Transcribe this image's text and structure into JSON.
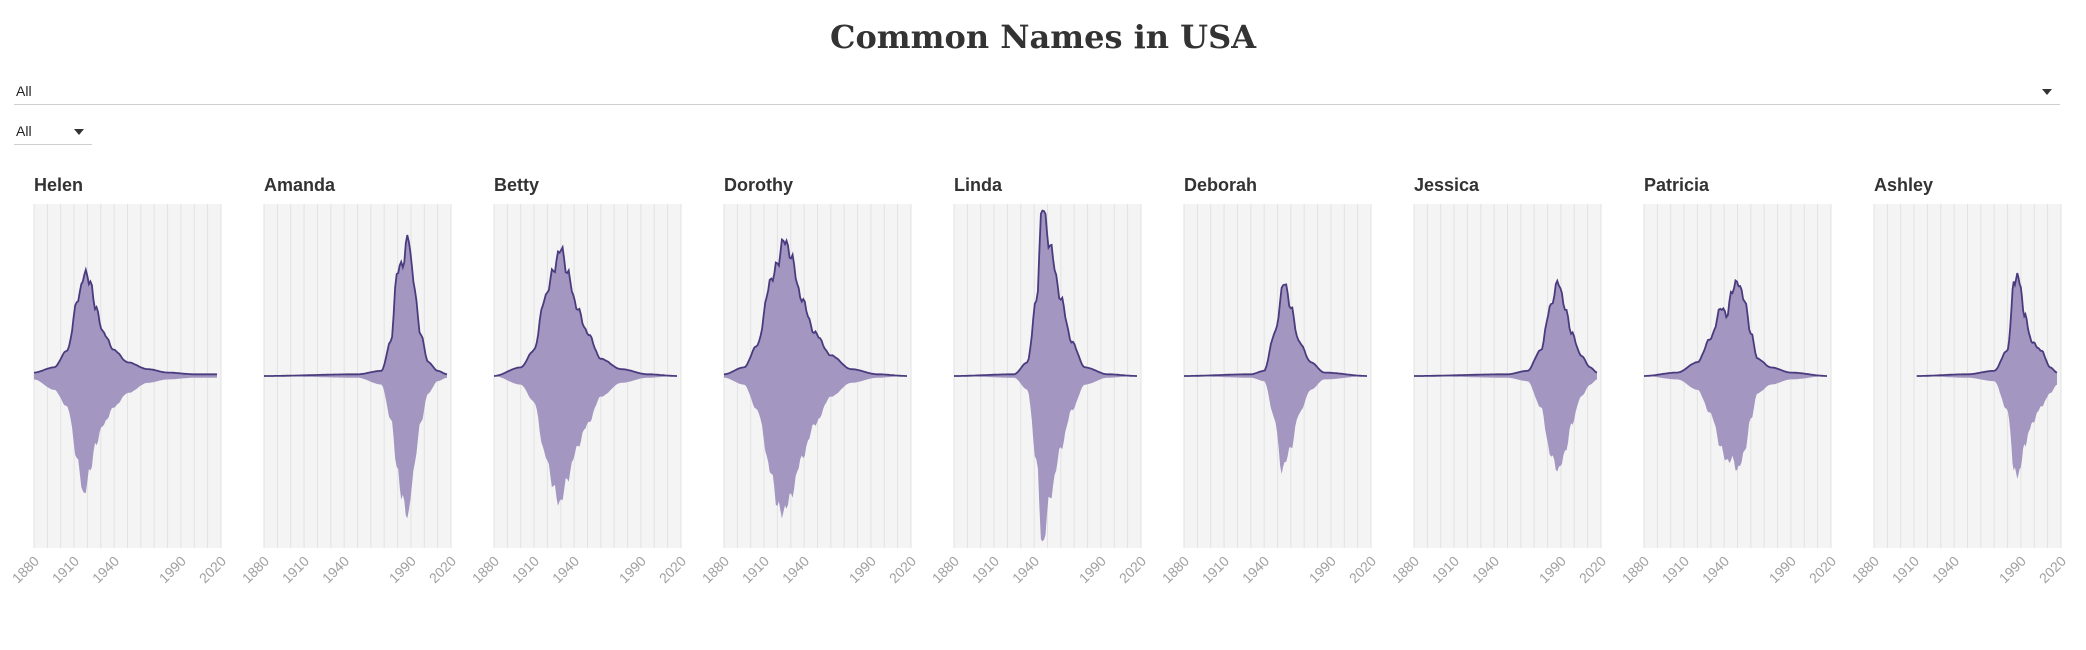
{
  "title": "Common Names in USA",
  "filters": {
    "wide_select_value": "All",
    "small_select_value": "All"
  },
  "colors": {
    "area_fill": "#a396c1",
    "line": "#4a3b7e",
    "panel_bg": "#f4f4f4",
    "grid": "#e2e2e2",
    "tick_text": "#a0a0a0"
  },
  "chart_data": {
    "type": "area",
    "description_of_axes": "x = year, mirrored area above and below a baseline",
    "x_ticks": [
      1880,
      1910,
      1940,
      1990,
      2020
    ],
    "xlim": [
      1880,
      2020
    ],
    "series": [
      {
        "name": "Helen",
        "upper": [
          [
            1880,
            0.02
          ],
          [
            1895,
            0.05
          ],
          [
            1905,
            0.15
          ],
          [
            1913,
            0.45
          ],
          [
            1918,
            0.6
          ],
          [
            1922,
            0.55
          ],
          [
            1926,
            0.4
          ],
          [
            1932,
            0.25
          ],
          [
            1940,
            0.15
          ],
          [
            1950,
            0.08
          ],
          [
            1965,
            0.04
          ],
          [
            1980,
            0.02
          ],
          [
            2000,
            0.01
          ],
          [
            2017,
            0.01
          ]
        ],
        "lower": [
          [
            1880,
            0.02
          ],
          [
            1895,
            0.08
          ],
          [
            1905,
            0.18
          ],
          [
            1913,
            0.5
          ],
          [
            1917,
            0.7
          ],
          [
            1922,
            0.55
          ],
          [
            1926,
            0.4
          ],
          [
            1932,
            0.28
          ],
          [
            1940,
            0.18
          ],
          [
            1950,
            0.1
          ],
          [
            1965,
            0.04
          ],
          [
            1980,
            0.02
          ],
          [
            2000,
            0.01
          ],
          [
            2017,
            0.01
          ]
        ]
      },
      {
        "name": "Amanda",
        "upper": [
          [
            1880,
            0.0
          ],
          [
            1950,
            0.01
          ],
          [
            1968,
            0.03
          ],
          [
            1975,
            0.2
          ],
          [
            1980,
            0.62
          ],
          [
            1984,
            0.65
          ],
          [
            1988,
            0.82
          ],
          [
            1992,
            0.55
          ],
          [
            1997,
            0.25
          ],
          [
            2003,
            0.08
          ],
          [
            2010,
            0.03
          ],
          [
            2017,
            0.01
          ]
        ],
        "lower": [
          [
            1880,
            0.0
          ],
          [
            1950,
            0.01
          ],
          [
            1968,
            0.05
          ],
          [
            1975,
            0.25
          ],
          [
            1980,
            0.55
          ],
          [
            1983,
            0.7
          ],
          [
            1988,
            0.82
          ],
          [
            1992,
            0.55
          ],
          [
            1997,
            0.28
          ],
          [
            2003,
            0.1
          ],
          [
            2010,
            0.03
          ],
          [
            2017,
            0.01
          ]
        ]
      },
      {
        "name": "Betty",
        "upper": [
          [
            1880,
            0.0
          ],
          [
            1900,
            0.05
          ],
          [
            1910,
            0.15
          ],
          [
            1918,
            0.45
          ],
          [
            1925,
            0.62
          ],
          [
            1930,
            0.75
          ],
          [
            1935,
            0.6
          ],
          [
            1942,
            0.4
          ],
          [
            1950,
            0.25
          ],
          [
            1960,
            0.1
          ],
          [
            1975,
            0.04
          ],
          [
            1995,
            0.01
          ],
          [
            2017,
            0.0
          ]
        ],
        "lower": [
          [
            1880,
            0.0
          ],
          [
            1900,
            0.05
          ],
          [
            1910,
            0.15
          ],
          [
            1918,
            0.45
          ],
          [
            1925,
            0.65
          ],
          [
            1929,
            0.75
          ],
          [
            1935,
            0.6
          ],
          [
            1942,
            0.42
          ],
          [
            1950,
            0.28
          ],
          [
            1960,
            0.12
          ],
          [
            1975,
            0.04
          ],
          [
            1995,
            0.01
          ],
          [
            2017,
            0.0
          ]
        ]
      },
      {
        "name": "Dorothy",
        "upper": [
          [
            1880,
            0.01
          ],
          [
            1895,
            0.05
          ],
          [
            1905,
            0.18
          ],
          [
            1915,
            0.55
          ],
          [
            1920,
            0.65
          ],
          [
            1925,
            0.8
          ],
          [
            1930,
            0.7
          ],
          [
            1938,
            0.45
          ],
          [
            1948,
            0.25
          ],
          [
            1960,
            0.12
          ],
          [
            1975,
            0.04
          ],
          [
            1995,
            0.01
          ],
          [
            2017,
            0.0
          ]
        ],
        "lower": [
          [
            1880,
            0.01
          ],
          [
            1895,
            0.05
          ],
          [
            1905,
            0.2
          ],
          [
            1915,
            0.55
          ],
          [
            1920,
            0.75
          ],
          [
            1924,
            0.8
          ],
          [
            1930,
            0.7
          ],
          [
            1938,
            0.48
          ],
          [
            1948,
            0.28
          ],
          [
            1960,
            0.12
          ],
          [
            1975,
            0.04
          ],
          [
            1995,
            0.01
          ],
          [
            2017,
            0.0
          ]
        ]
      },
      {
        "name": "Linda",
        "upper": [
          [
            1880,
            0.0
          ],
          [
            1925,
            0.01
          ],
          [
            1935,
            0.08
          ],
          [
            1942,
            0.45
          ],
          [
            1946,
            1.0
          ],
          [
            1952,
            0.75
          ],
          [
            1960,
            0.45
          ],
          [
            1968,
            0.2
          ],
          [
            1978,
            0.05
          ],
          [
            1995,
            0.01
          ],
          [
            2017,
            0.0
          ]
        ],
        "lower": [
          [
            1880,
            0.0
          ],
          [
            1925,
            0.01
          ],
          [
            1935,
            0.08
          ],
          [
            1942,
            0.5
          ],
          [
            1946,
            1.0
          ],
          [
            1952,
            0.7
          ],
          [
            1960,
            0.42
          ],
          [
            1968,
            0.2
          ],
          [
            1978,
            0.05
          ],
          [
            1995,
            0.01
          ],
          [
            2017,
            0.0
          ]
        ]
      },
      {
        "name": "Deborah",
        "upper": [
          [
            1880,
            0.0
          ],
          [
            1930,
            0.01
          ],
          [
            1940,
            0.03
          ],
          [
            1948,
            0.25
          ],
          [
            1955,
            0.55
          ],
          [
            1960,
            0.4
          ],
          [
            1966,
            0.2
          ],
          [
            1975,
            0.08
          ],
          [
            1985,
            0.02
          ],
          [
            2017,
            0.0
          ]
        ],
        "lower": [
          [
            1880,
            0.0
          ],
          [
            1930,
            0.01
          ],
          [
            1940,
            0.03
          ],
          [
            1948,
            0.25
          ],
          [
            1953,
            0.55
          ],
          [
            1960,
            0.42
          ],
          [
            1966,
            0.22
          ],
          [
            1975,
            0.08
          ],
          [
            1985,
            0.02
          ],
          [
            2017,
            0.0
          ]
        ]
      },
      {
        "name": "Jessica",
        "upper": [
          [
            1880,
            0.0
          ],
          [
            1950,
            0.01
          ],
          [
            1965,
            0.03
          ],
          [
            1975,
            0.15
          ],
          [
            1982,
            0.4
          ],
          [
            1988,
            0.55
          ],
          [
            1993,
            0.4
          ],
          [
            1998,
            0.25
          ],
          [
            2005,
            0.12
          ],
          [
            2012,
            0.05
          ],
          [
            2017,
            0.02
          ]
        ],
        "lower": [
          [
            1880,
            0.0
          ],
          [
            1950,
            0.01
          ],
          [
            1965,
            0.03
          ],
          [
            1975,
            0.18
          ],
          [
            1982,
            0.45
          ],
          [
            1988,
            0.55
          ],
          [
            1993,
            0.45
          ],
          [
            1998,
            0.28
          ],
          [
            2005,
            0.12
          ],
          [
            2012,
            0.05
          ],
          [
            2017,
            0.02
          ]
        ]
      },
      {
        "name": "Patricia",
        "upper": [
          [
            1880,
            0.0
          ],
          [
            1905,
            0.02
          ],
          [
            1920,
            0.08
          ],
          [
            1930,
            0.22
          ],
          [
            1938,
            0.4
          ],
          [
            1942,
            0.35
          ],
          [
            1946,
            0.5
          ],
          [
            1950,
            0.55
          ],
          [
            1955,
            0.45
          ],
          [
            1960,
            0.25
          ],
          [
            1965,
            0.1
          ],
          [
            1975,
            0.05
          ],
          [
            1990,
            0.02
          ],
          [
            2017,
            0.0
          ]
        ],
        "lower": [
          [
            1880,
            0.0
          ],
          [
            1905,
            0.02
          ],
          [
            1920,
            0.08
          ],
          [
            1930,
            0.22
          ],
          [
            1938,
            0.42
          ],
          [
            1942,
            0.5
          ],
          [
            1946,
            0.48
          ],
          [
            1950,
            0.55
          ],
          [
            1955,
            0.45
          ],
          [
            1960,
            0.25
          ],
          [
            1965,
            0.1
          ],
          [
            1975,
            0.05
          ],
          [
            1990,
            0.02
          ],
          [
            2017,
            0.0
          ]
        ]
      },
      {
        "name": "Ashley",
        "upper": [
          [
            1912,
            0.0
          ],
          [
            1950,
            0.01
          ],
          [
            1970,
            0.03
          ],
          [
            1980,
            0.15
          ],
          [
            1985,
            0.55
          ],
          [
            1988,
            0.58
          ],
          [
            1993,
            0.35
          ],
          [
            1998,
            0.2
          ],
          [
            2005,
            0.15
          ],
          [
            2012,
            0.05
          ],
          [
            2017,
            0.02
          ]
        ],
        "lower": [
          [
            1912,
            0.0
          ],
          [
            1950,
            0.01
          ],
          [
            1970,
            0.03
          ],
          [
            1980,
            0.2
          ],
          [
            1985,
            0.55
          ],
          [
            1988,
            0.58
          ],
          [
            1993,
            0.4
          ],
          [
            1998,
            0.28
          ],
          [
            2005,
            0.18
          ],
          [
            2012,
            0.1
          ],
          [
            2017,
            0.05
          ]
        ]
      }
    ]
  }
}
